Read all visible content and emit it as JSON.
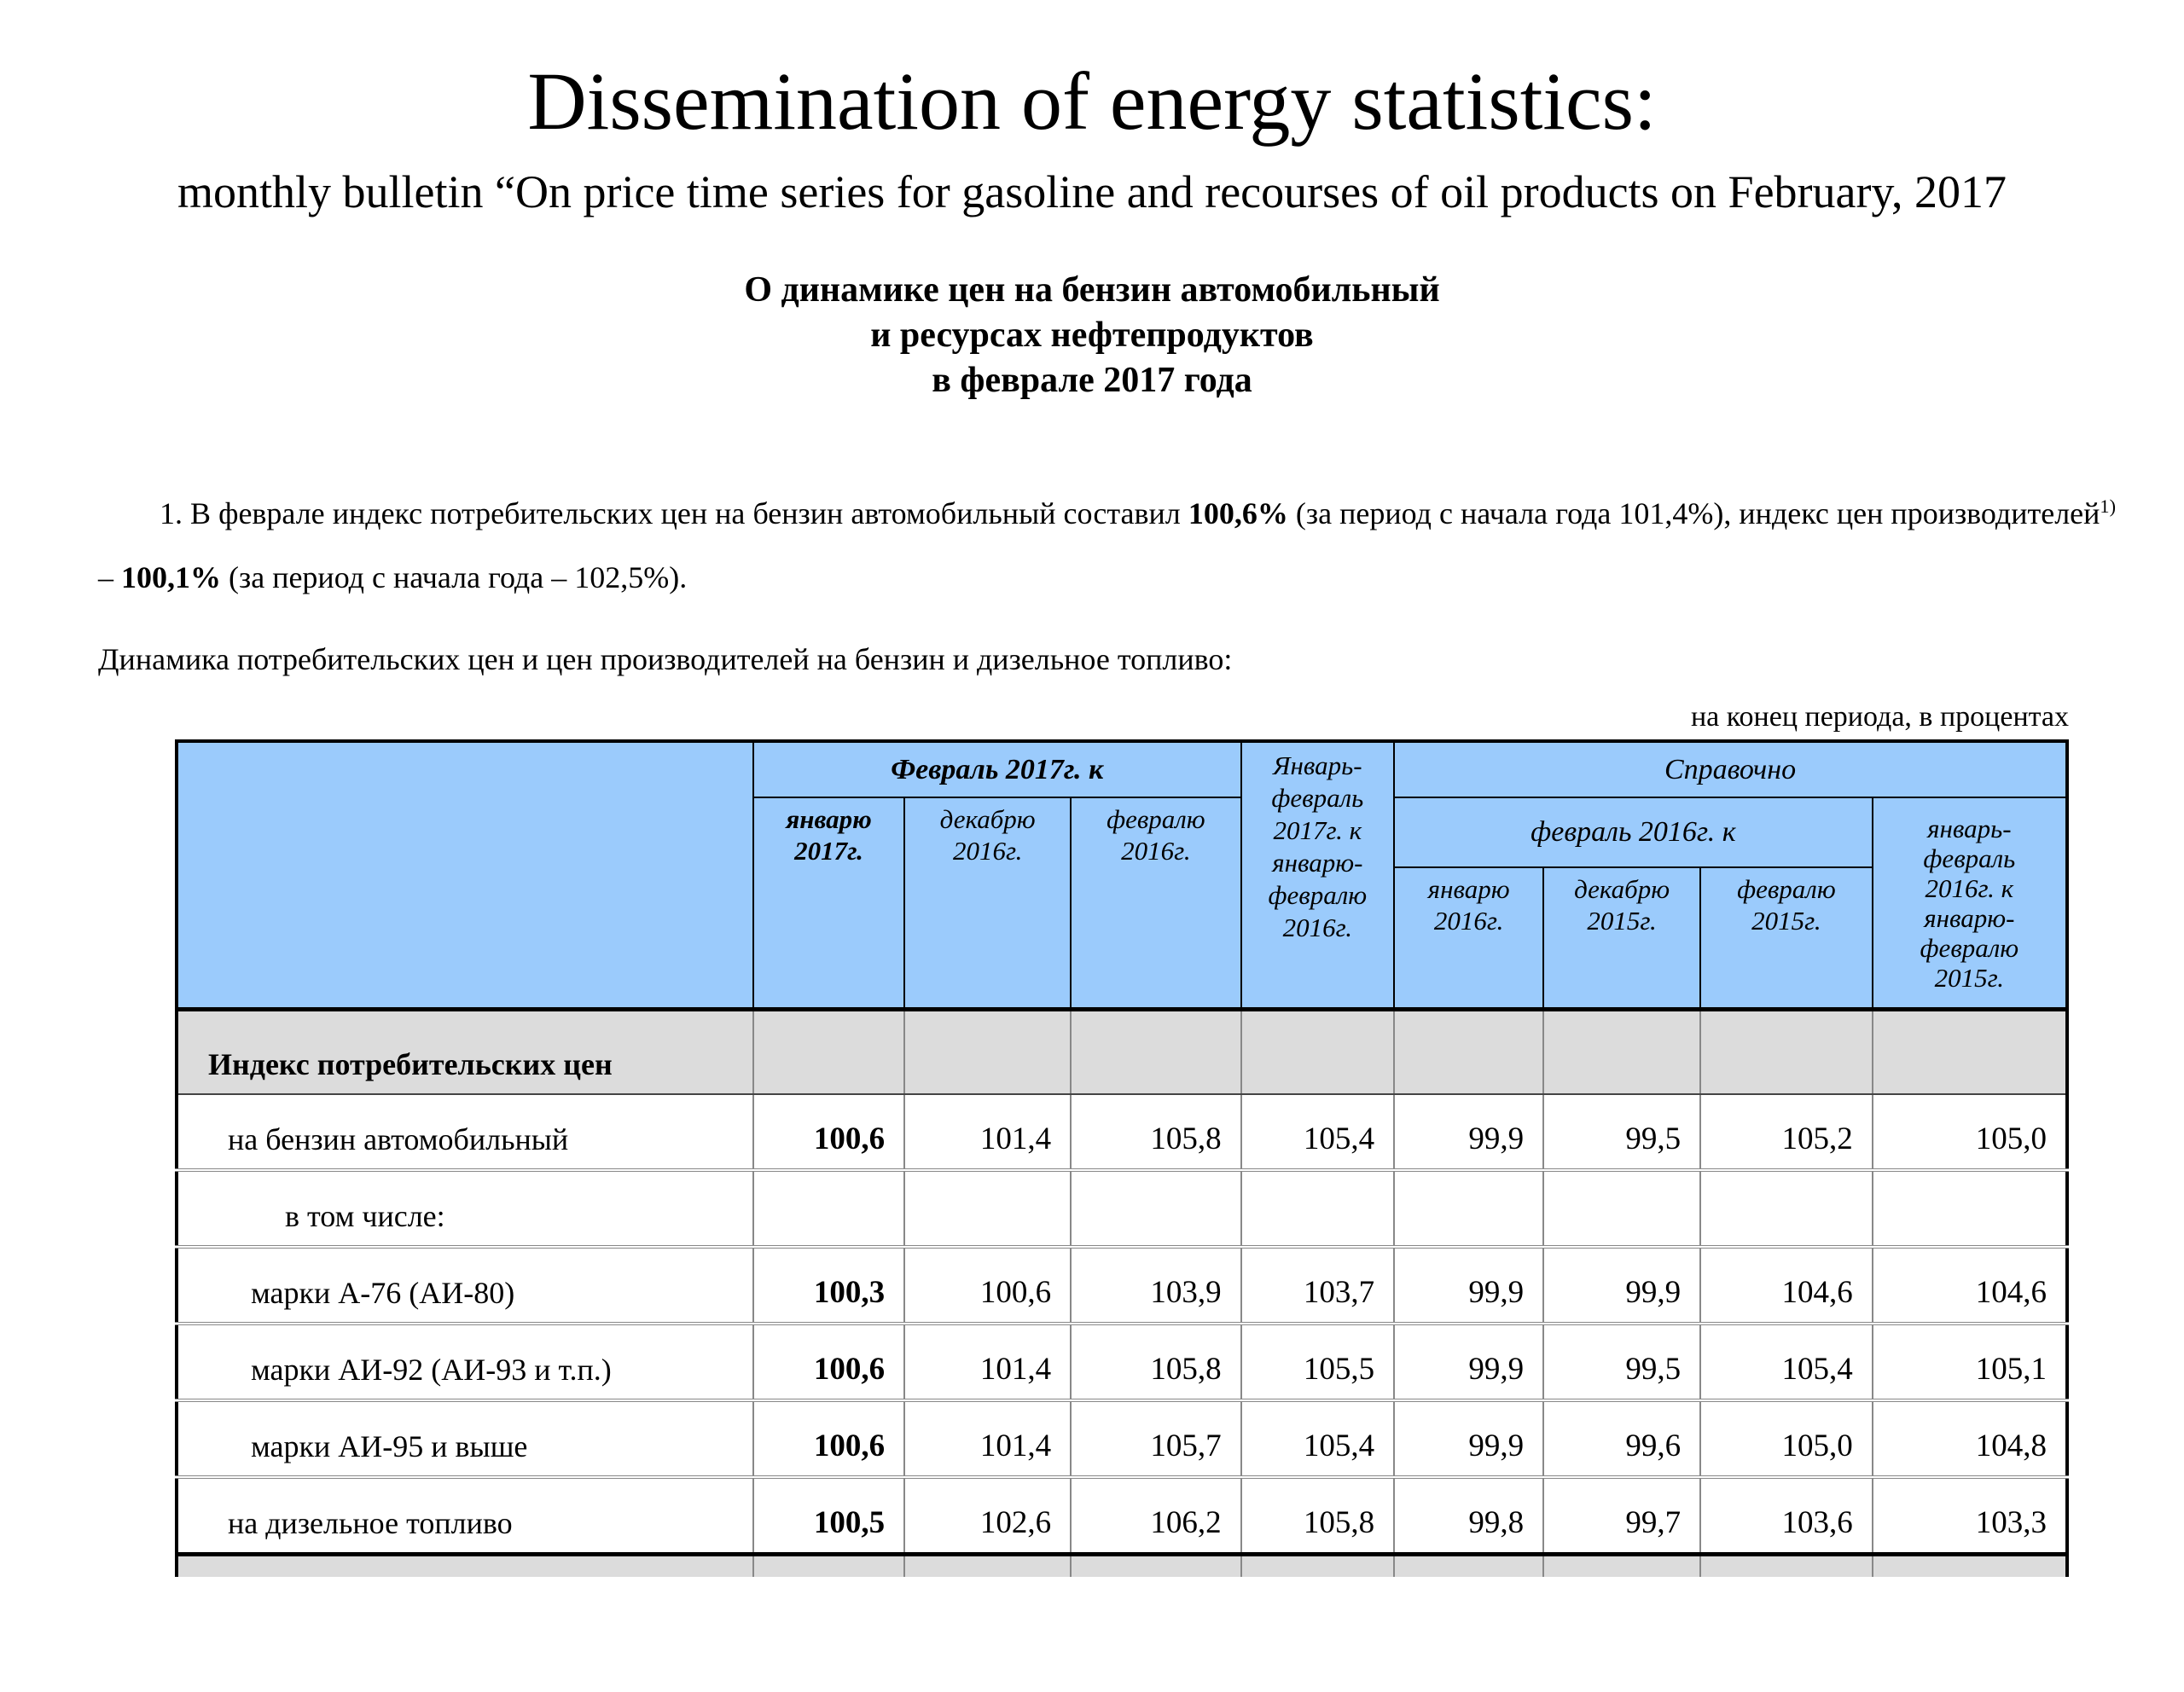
{
  "doc": {
    "title": "Dissemination of energy statistics:",
    "subtitle": "monthly bulletin “On price time series for gasoline and recourses of oil products on February, 2017",
    "ru_heading": {
      "line1": "О динамике цен на бензин автомобильный",
      "line2": "и ресурсах нефтепродуктов",
      "line3": "в феврале 2017 года"
    },
    "paragraph": {
      "lead": "1. В феврале индекс потребительских цен на бензин автомобильный составил ",
      "cpi_value": "100,6%",
      "mid": " (за период с начала года 101,4%), индекс цен производителей",
      "footnote_mark": "1)",
      "dash": " – ",
      "ppi_value": "100,1%",
      "tail": " (за период с начала года – 102,5%)."
    },
    "lead_in": "Динамика потребительских цен и цен производителей на бензин и дизельное топливо:",
    "units_note": "на конец периода, в процентах"
  },
  "colors": {
    "header_blue": "#9bcbfc",
    "section_gray": "#dcdcdc"
  },
  "table": {
    "header": {
      "feb2017_to": "Февраль 2017г. к",
      "jan2017": "январю\n2017г.",
      "dec2016": "декабрю\n2016г.",
      "feb2016": "февралю\n2016г.",
      "janfeb2017": "Январь-\nфевраль\n2017г. к\nянварю-\nфевралю\n2016г.",
      "reference": "Справочно",
      "feb2016_to": "февраль 2016г. к",
      "jan2016": "январю\n2016г.",
      "dec2015": "декабрю\n2015г.",
      "feb2015": "февралю\n2015г.",
      "janfeb2016": "январь-\nфевраль\n2016г. к\nянварю-\nфевралю\n2015г."
    },
    "rows": [
      {
        "label": "Индекс потребительских цен",
        "type": "section",
        "indent": 0,
        "values": [
          "",
          "",
          "",
          "",
          "",
          "",
          "",
          ""
        ]
      },
      {
        "label": "на бензин автомобильный",
        "type": "first",
        "indent": 1,
        "values": [
          "100,6",
          "101,4",
          "105,8",
          "105,4",
          "99,9",
          "99,5",
          "105,2",
          "105,0"
        ]
      },
      {
        "label": "в том числе:",
        "type": "data",
        "indent": 3,
        "values": [
          "",
          "",
          "",
          "",
          "",
          "",
          "",
          ""
        ]
      },
      {
        "label": "марки А-76 (АИ-80)",
        "type": "data",
        "indent": 2,
        "values": [
          "100,3",
          "100,6",
          "103,9",
          "103,7",
          "99,9",
          "99,9",
          "104,6",
          "104,6"
        ]
      },
      {
        "label": "марки АИ-92 (АИ-93 и т.п.)",
        "type": "data",
        "indent": 2,
        "values": [
          "100,6",
          "101,4",
          "105,8",
          "105,5",
          "99,9",
          "99,5",
          "105,4",
          "105,1"
        ]
      },
      {
        "label": "марки АИ-95 и выше",
        "type": "data",
        "indent": 2,
        "values": [
          "100,6",
          "101,4",
          "105,7",
          "105,4",
          "99,9",
          "99,6",
          "105,0",
          "104,8"
        ]
      },
      {
        "label": "на дизельное топливо",
        "type": "data",
        "indent": 1,
        "values": [
          "100,5",
          "102,6",
          "106,2",
          "105,8",
          "99,8",
          "99,7",
          "103,6",
          "103,3"
        ]
      },
      {
        "label": "",
        "type": "partial",
        "indent": 0,
        "values": [
          "",
          "",
          "",
          "",
          "",
          "",
          "",
          ""
        ]
      }
    ]
  }
}
